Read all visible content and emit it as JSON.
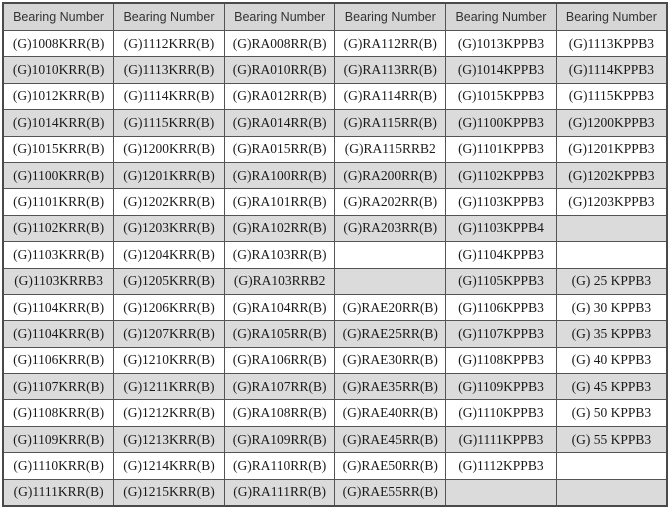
{
  "table": {
    "headers": [
      "Bearing Number",
      "Bearing Number",
      "Bearing Number",
      "Bearing Number",
      "Bearing Number",
      "Bearing Number"
    ],
    "rows": [
      [
        "(G)1008KRR(B)",
        "(G)1112KRR(B)",
        "(G)RA008RR(B)",
        "(G)RA112RR(B)",
        "(G)1013KPPB3",
        "(G)1113KPPB3"
      ],
      [
        "(G)1010KRR(B)",
        "(G)1113KRR(B)",
        "(G)RA010RR(B)",
        "(G)RA113RR(B)",
        "(G)1014KPPB3",
        "(G)1114KPPB3"
      ],
      [
        "(G)1012KRR(B)",
        "(G)1114KRR(B)",
        "(G)RA012RR(B)",
        "(G)RA114RR(B)",
        "(G)1015KPPB3",
        "(G)1115KPPB3"
      ],
      [
        "(G)1014KRR(B)",
        "(G)1115KRR(B)",
        "(G)RA014RR(B)",
        "(G)RA115RR(B)",
        "(G)1100KPPB3",
        "(G)1200KPPB3"
      ],
      [
        "(G)1015KRR(B)",
        "(G)1200KRR(B)",
        "(G)RA015RR(B)",
        "(G)RA115RRB2",
        "(G)1101KPPB3",
        "(G)1201KPPB3"
      ],
      [
        "(G)1100KRR(B)",
        "(G)1201KRR(B)",
        "(G)RA100RR(B)",
        "(G)RA200RR(B)",
        "(G)1102KPPB3",
        "(G)1202KPPB3"
      ],
      [
        "(G)1101KRR(B)",
        "(G)1202KRR(B)",
        "(G)RA101RR(B)",
        "(G)RA202RR(B)",
        "(G)1103KPPB3",
        "(G)1203KPPB3"
      ],
      [
        "(G)1102KRR(B)",
        "(G)1203KRR(B)",
        "(G)RA102RR(B)",
        "(G)RA203RR(B)",
        "(G)1103KPPB4",
        ""
      ],
      [
        "(G)1103KRR(B)",
        "(G)1204KRR(B)",
        "(G)RA103RR(B)",
        "",
        "(G)1104KPPB3",
        ""
      ],
      [
        "(G)1103KRRB3",
        "(G)1205KRR(B)",
        "(G)RA103RRB2",
        "",
        "(G)1105KPPB3",
        "(G) 25 KPPB3"
      ],
      [
        "(G)1104KRR(B)",
        "(G)1206KRR(B)",
        "(G)RA104RR(B)",
        "(G)RAE20RR(B)",
        "(G)1106KPPB3",
        "(G) 30 KPPB3"
      ],
      [
        "(G)1104KRR(B)",
        "(G)1207KRR(B)",
        "(G)RA105RR(B)",
        "(G)RAE25RR(B)",
        "(G)1107KPPB3",
        "(G) 35 KPPB3"
      ],
      [
        "(G)1106KRR(B)",
        "(G)1210KRR(B)",
        "(G)RA106RR(B)",
        "(G)RAE30RR(B)",
        "(G)1108KPPB3",
        "(G) 40 KPPB3"
      ],
      [
        "(G)1107KRR(B)",
        "(G)1211KRR(B)",
        "(G)RA107RR(B)",
        "(G)RAE35RR(B)",
        "(G)1109KPPB3",
        "(G) 45 KPPB3"
      ],
      [
        "(G)1108KRR(B)",
        "(G)1212KRR(B)",
        "(G)RA108RR(B)",
        "(G)RAE40RR(B)",
        "(G)1110KPPB3",
        "(G) 50 KPPB3"
      ],
      [
        "(G)1109KRR(B)",
        "(G)1213KRR(B)",
        "(G)RA109RR(B)",
        "(G)RAE45RR(B)",
        "(G)1111KPPB3",
        "(G) 55 KPPB3"
      ],
      [
        "(G)1110KRR(B)",
        "(G)1214KRR(B)",
        "(G)RA110RR(B)",
        "(G)RAE50RR(B)",
        "(G)1112KPPB3",
        ""
      ],
      [
        "(G)1111KRR(B)",
        "(G)1215KRR(B)",
        "(G)RA111RR(B)",
        "(G)RAE55RR(B)",
        "",
        ""
      ]
    ]
  },
  "colors": {
    "header_bg": "#d6d6d6",
    "alt_row_bg": "#dbdbdb",
    "row_bg": "#ffffff",
    "border": "#545454",
    "header_text": "#333333",
    "cell_text": "#1a1a1a"
  }
}
